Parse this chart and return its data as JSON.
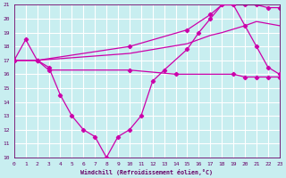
{
  "line1_x": [
    0,
    1,
    2,
    3,
    4,
    5,
    6,
    7,
    8,
    9,
    10,
    11,
    12,
    13,
    15,
    16,
    17,
    18,
    19,
    20,
    21,
    22,
    23
  ],
  "line1_y": [
    17.0,
    18.5,
    17.0,
    16.5,
    14.5,
    13.0,
    12.0,
    11.5,
    10.0,
    11.5,
    12.0,
    13.0,
    15.5,
    16.3,
    17.8,
    19.0,
    20.0,
    21.0,
    21.0,
    19.5,
    18.0,
    16.5,
    16.0
  ],
  "line2_x": [
    0,
    2,
    3,
    10,
    14,
    19,
    20,
    21,
    22,
    23
  ],
  "line2_y": [
    17.0,
    17.0,
    16.3,
    16.3,
    16.0,
    16.0,
    15.8,
    15.8,
    15.8,
    15.8
  ],
  "line3_x": [
    0,
    2,
    10,
    15,
    17,
    18,
    20,
    21,
    23
  ],
  "line3_y": [
    17.0,
    17.0,
    17.5,
    18.2,
    18.8,
    19.0,
    19.5,
    19.8,
    19.5
  ],
  "line4_x": [
    0,
    2,
    10,
    15,
    17,
    18,
    19,
    20,
    21,
    22,
    23
  ],
  "line4_y": [
    17.0,
    17.0,
    18.0,
    19.2,
    20.3,
    21.0,
    21.0,
    21.0,
    21.0,
    20.8,
    20.8
  ],
  "color": "#cc00aa",
  "color2": "#660066",
  "bg_color": "#c8eef0",
  "grid_color": "#ffffff",
  "xlabel": "Windchill (Refroidissement éolien,°C)",
  "xlim": [
    0,
    23
  ],
  "ylim": [
    10,
    21
  ],
  "yticks": [
    10,
    11,
    12,
    13,
    14,
    15,
    16,
    17,
    18,
    19,
    20,
    21
  ],
  "xticks": [
    0,
    1,
    2,
    3,
    4,
    5,
    6,
    7,
    8,
    9,
    10,
    11,
    12,
    13,
    14,
    15,
    16,
    17,
    18,
    19,
    20,
    21,
    22,
    23
  ]
}
